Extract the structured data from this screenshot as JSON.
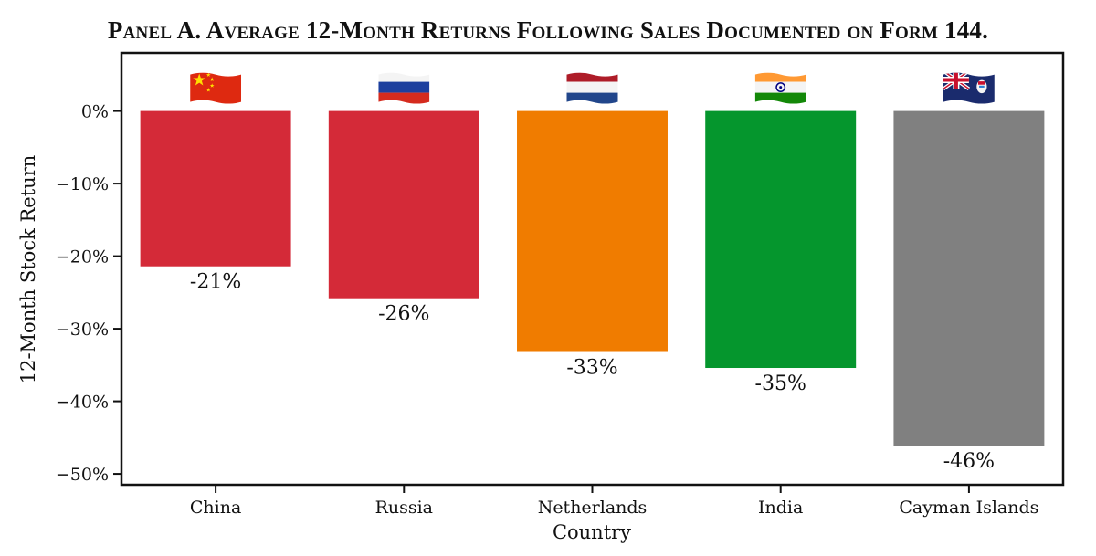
{
  "chart_data": {
    "type": "bar",
    "title": "Panel A. Average 12-Month Returns Following Sales Documented on Form 144.",
    "xlabel": "Country",
    "ylabel": "12-Month Stock Return",
    "categories": [
      "China",
      "Russia",
      "Netherlands",
      "India",
      "Cayman Islands"
    ],
    "values": [
      -21.4,
      -25.8,
      -33.2,
      -35.4,
      -46.1
    ],
    "data_labels": [
      "-21%",
      "-26%",
      "-33%",
      "-35%",
      "-46%"
    ],
    "colors": [
      "#d42a38",
      "#d42a38",
      "#f07c00",
      "#05962d",
      "#808080"
    ],
    "flag_icons": [
      "china-flag-icon",
      "russia-flag-icon",
      "netherlands-flag-icon",
      "india-flag-icon",
      "cayman-islands-flag-icon"
    ],
    "ylim": [
      -51.5,
      8
    ],
    "yticks": [
      0,
      -10,
      -20,
      -30,
      -40,
      -50
    ],
    "ytick_labels": [
      "0%",
      "−10%",
      "−20%",
      "−30%",
      "−40%",
      "−50%"
    ],
    "grid": false,
    "legend": "none"
  }
}
